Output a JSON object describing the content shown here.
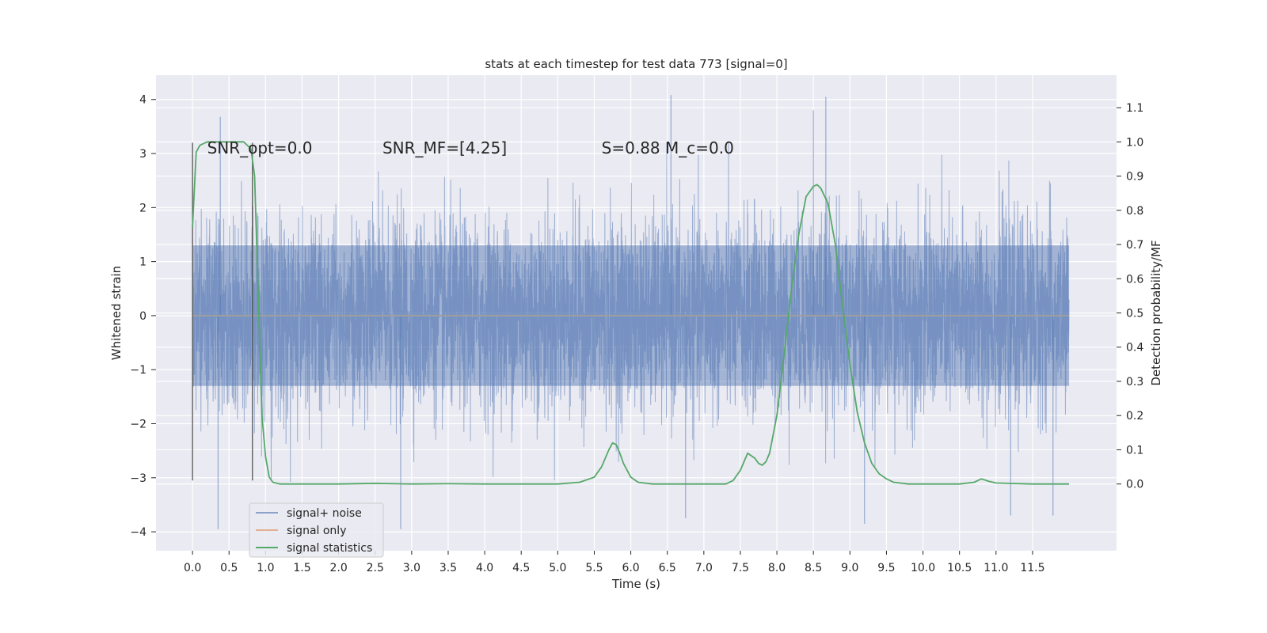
{
  "chart_data": {
    "type": "line",
    "title": "stats at each timestep for test data 773 [signal=0]",
    "xlabel": "Time (s)",
    "ylabel": "Whitened strain",
    "y2label": "Detection probability/MF",
    "xlim": [
      -0.5,
      12.65
    ],
    "ylim": [
      -4.35,
      4.45
    ],
    "y2lim": [
      -0.195,
      1.195
    ],
    "x_ticks": [
      0.0,
      0.5,
      1.0,
      1.5,
      2.0,
      2.5,
      3.0,
      3.5,
      4.0,
      4.5,
      5.0,
      5.5,
      6.0,
      6.5,
      7.0,
      7.5,
      8.0,
      8.5,
      9.0,
      9.5,
      10.0,
      10.5,
      11.0,
      11.5
    ],
    "x_tick_labels": [
      "0.0",
      "0.5",
      "1.0",
      "1.5",
      "2.0",
      "2.5",
      "3.0",
      "3.5",
      "4.0",
      "4.5",
      "5.0",
      "5.5",
      "6.0",
      "6.5",
      "7.0",
      "7.5",
      "8.0",
      "8.5",
      "9.0",
      "9.5",
      "10.0",
      "10.5",
      "11.0",
      "11.5"
    ],
    "y_ticks": [
      -4,
      -3,
      -2,
      -1,
      0,
      1,
      2,
      3,
      4
    ],
    "y_tick_labels": [
      "−4",
      "−3",
      "−2",
      "−1",
      "0",
      "1",
      "2",
      "3",
      "4"
    ],
    "y2_ticks": [
      0.0,
      0.1,
      0.2,
      0.3,
      0.4,
      0.5,
      0.6,
      0.7,
      0.8,
      0.9,
      1.0,
      1.1
    ],
    "y2_tick_labels": [
      "0.0",
      "0.1",
      "0.2",
      "0.3",
      "0.4",
      "0.5",
      "0.6",
      "0.7",
      "0.8",
      "0.9",
      "1.0",
      "1.1"
    ],
    "grid": true,
    "legend_position": "lower-left",
    "annotations": [
      {
        "text": "SNR_opt=0.0",
        "x": 0.2,
        "y": 3.1
      },
      {
        "text": "SNR_MF=[4.25]",
        "x": 2.6,
        "y": 3.1
      },
      {
        "text": "S=0.88   M_c=0.0",
        "x": 5.6,
        "y": 3.1
      }
    ],
    "vertical_lines": [
      {
        "x": 0.0,
        "y_range": [
          -3.05,
          3.2
        ]
      },
      {
        "x": 0.82,
        "y_range": [
          -3.05,
          3.2
        ]
      }
    ],
    "series": [
      {
        "name": "signal+ noise",
        "color": "#4c72b0",
        "axis": "left",
        "kind": "noise",
        "x_range": [
          0.0,
          12.0
        ],
        "body_amplitude": 1.3,
        "max_peak": 4.08,
        "min_trough": -3.95
      },
      {
        "name": "signal only",
        "color": "#dd8452",
        "axis": "left",
        "x": [
          0.0,
          12.0
        ],
        "y": [
          0.0,
          0.0
        ]
      },
      {
        "name": "signal statistics",
        "color": "#55a868",
        "axis": "right",
        "x": [
          0.0,
          0.05,
          0.1,
          0.2,
          0.3,
          0.4,
          0.5,
          0.6,
          0.7,
          0.75,
          0.8,
          0.85,
          0.9,
          0.95,
          1.0,
          1.05,
          1.1,
          1.2,
          1.5,
          2.0,
          2.5,
          3.0,
          3.5,
          4.0,
          4.5,
          5.0,
          5.3,
          5.5,
          5.6,
          5.7,
          5.75,
          5.8,
          5.85,
          5.9,
          6.0,
          6.1,
          6.3,
          6.5,
          7.0,
          7.3,
          7.4,
          7.5,
          7.6,
          7.7,
          7.75,
          7.8,
          7.85,
          7.9,
          8.0,
          8.1,
          8.2,
          8.3,
          8.4,
          8.5,
          8.55,
          8.6,
          8.7,
          8.8,
          8.9,
          9.0,
          9.1,
          9.2,
          9.3,
          9.4,
          9.5,
          9.6,
          9.8,
          10.0,
          10.5,
          10.7,
          10.8,
          10.9,
          11.0,
          11.5,
          12.0
        ],
        "y": [
          0.75,
          0.97,
          0.99,
          1.0,
          1.0,
          1.0,
          1.0,
          1.0,
          1.0,
          0.99,
          0.98,
          0.9,
          0.55,
          0.2,
          0.08,
          0.02,
          0.005,
          0.0,
          0.0,
          0.0,
          0.002,
          0.0,
          0.001,
          0.0,
          0.0,
          0.0,
          0.005,
          0.02,
          0.05,
          0.1,
          0.12,
          0.115,
          0.09,
          0.06,
          0.02,
          0.005,
          0.0,
          0.0,
          0.0,
          0.0,
          0.01,
          0.04,
          0.09,
          0.075,
          0.06,
          0.055,
          0.065,
          0.09,
          0.2,
          0.38,
          0.57,
          0.73,
          0.84,
          0.87,
          0.875,
          0.865,
          0.82,
          0.7,
          0.52,
          0.35,
          0.21,
          0.12,
          0.06,
          0.03,
          0.015,
          0.005,
          0.0,
          0.0,
          0.0,
          0.005,
          0.015,
          0.008,
          0.003,
          0.0,
          0.0
        ]
      }
    ]
  }
}
